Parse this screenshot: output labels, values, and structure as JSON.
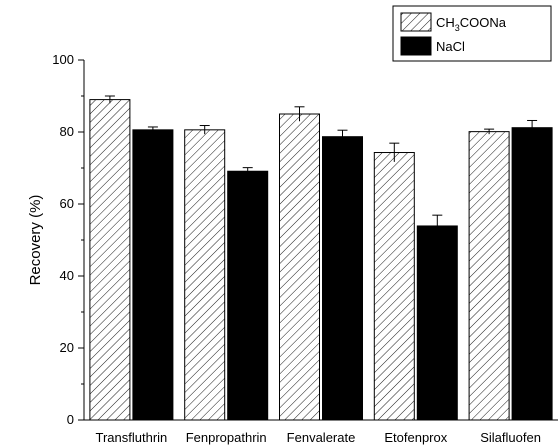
{
  "chart_data": {
    "type": "bar",
    "title": "",
    "xlabel": "",
    "ylabel": "Recovery (%)",
    "ylim": [
      0,
      100
    ],
    "yticks": [
      0,
      20,
      40,
      60,
      80,
      100
    ],
    "categories": [
      "Transfluthrin",
      "Fenpropathrin",
      "Fenvalerate",
      "Etofenprox",
      "Silafluofen"
    ],
    "series": [
      {
        "name": "CH3COONa",
        "name_main": "CH",
        "name_sub": "3",
        "name_rest": "COONa",
        "pattern": "diagonal-hatch",
        "values": [
          89.0,
          80.6,
          85.0,
          74.3,
          80.1
        ],
        "errors": [
          1.0,
          1.2,
          2.0,
          2.6,
          0.7
        ]
      },
      {
        "name": "NaCl",
        "pattern": "solid-black",
        "values": [
          80.6,
          69.1,
          78.7,
          53.9,
          81.2
        ],
        "errors": [
          0.8,
          1.0,
          1.8,
          3.0,
          2.0
        ]
      }
    ],
    "legend_position": "top-right",
    "grid": false
  }
}
